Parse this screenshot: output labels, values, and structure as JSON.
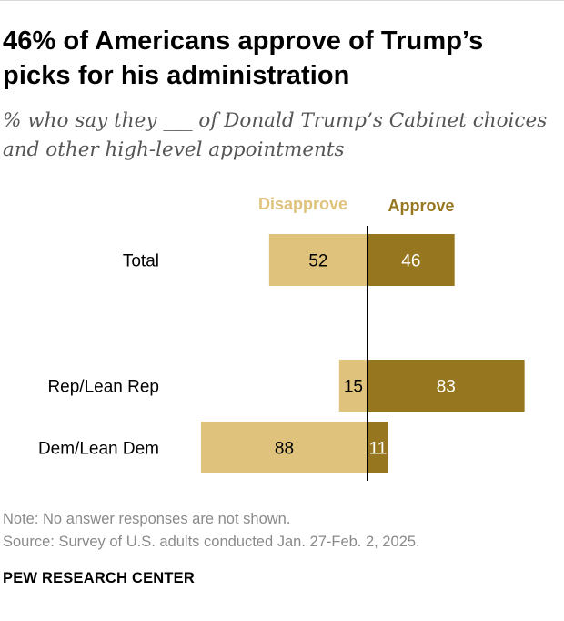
{
  "title": "46% of Americans approve of Trump’s picks for his administration",
  "subtitle": "% who say they ___ of Donald Trump’s Cabinet choices and other high-level appointments",
  "note": "Note: No answer responses are not shown.",
  "source": "Source: Survey of U.S. adults conducted Jan. 27-Feb. 2, 2025.",
  "brand": "PEW RESEARCH CENTER",
  "colors": {
    "disapprove": "#dfc27c",
    "approve": "#967720",
    "axis": "#000000",
    "text": "#000000"
  },
  "chart_data": {
    "type": "bar",
    "orientation": "horizontal-diverging",
    "categories": [
      "Total",
      "Rep/Lean Rep",
      "Dem/Lean Dem"
    ],
    "series": [
      {
        "name": "Disapprove",
        "direction": "left",
        "values": [
          52,
          15,
          88
        ]
      },
      {
        "name": "Approve",
        "direction": "right",
        "values": [
          46,
          83,
          11
        ]
      }
    ],
    "title": "46% of Americans approve of Trump’s picks for his administration",
    "xlabel": "",
    "ylabel": "",
    "legend_position": "top",
    "grid": false
  }
}
